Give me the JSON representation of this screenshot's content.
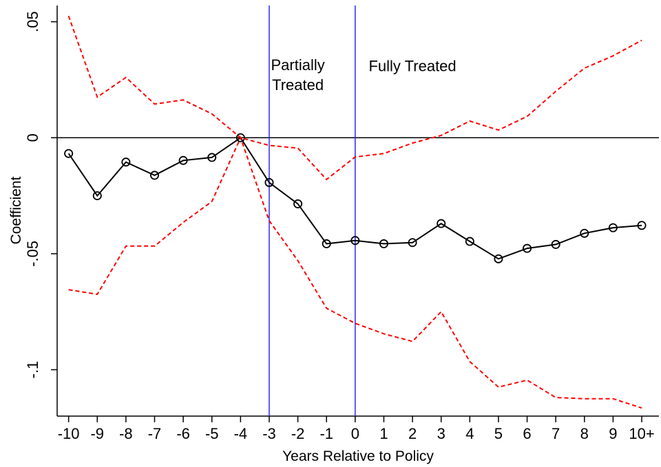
{
  "chart_data": {
    "type": "line",
    "xlabel": "Years Relative to Policy",
    "ylabel": "Coefficient",
    "x_tick_labels": [
      "-10",
      "-9",
      "-8",
      "-7",
      "-6",
      "-5",
      "-4",
      "-3",
      "-2",
      "-1",
      "0",
      "1",
      "2",
      "3",
      "4",
      "5",
      "6",
      "7",
      "8",
      "9",
      "10+"
    ],
    "x": [
      -10,
      -9,
      -8,
      -7,
      -6,
      -5,
      -4,
      -3,
      -2,
      -1,
      0,
      1,
      2,
      3,
      4,
      5,
      6,
      7,
      8,
      9,
      10
    ],
    "xlim": [
      -10.4,
      10.6
    ],
    "ylim": [
      -0.12,
      0.057
    ],
    "y_ticks": [
      {
        "value": 0.05,
        "label": ".05"
      },
      {
        "value": 0,
        "label": "0"
      },
      {
        "value": -0.05,
        "label": "-.05"
      },
      {
        "value": -0.1,
        "label": "-.1"
      }
    ],
    "grid": false,
    "series": [
      {
        "role": "estimate",
        "style": "solid",
        "marker": "hollow-circle",
        "color": "#000000",
        "values": [
          -0.0068,
          -0.025,
          -0.0105,
          -0.0162,
          -0.0098,
          -0.0085,
          0.0,
          -0.0193,
          -0.0285,
          -0.0457,
          -0.0443,
          -0.0457,
          -0.0452,
          -0.037,
          -0.0447,
          -0.0522,
          -0.0477,
          -0.046,
          -0.0412,
          -0.0388,
          -0.0378
        ]
      },
      {
        "role": "upper-ci",
        "style": "dashed",
        "color": "#ff0000",
        "values": [
          0.0525,
          0.0175,
          0.026,
          0.0145,
          0.0163,
          0.0103,
          0.0,
          -0.0033,
          -0.0045,
          -0.018,
          -0.0083,
          -0.0068,
          -0.0023,
          0.001,
          0.0072,
          0.0033,
          0.0092,
          0.02,
          0.03,
          0.0353,
          0.042
        ]
      },
      {
        "role": "lower-ci",
        "style": "dashed",
        "color": "#ff0000",
        "values": [
          -0.0655,
          -0.0675,
          -0.0467,
          -0.0467,
          -0.0365,
          -0.0275,
          0.0,
          -0.0358,
          -0.053,
          -0.0735,
          -0.08,
          -0.0845,
          -0.0878,
          -0.075,
          -0.0965,
          -0.1075,
          -0.1045,
          -0.112,
          -0.1125,
          -0.1125,
          -0.1165
        ]
      }
    ],
    "reference_lines": [
      {
        "orientation": "horizontal",
        "value": 0,
        "color": "#000000"
      },
      {
        "orientation": "vertical",
        "value": -3,
        "color": "#1a1aff"
      },
      {
        "orientation": "vertical",
        "value": 0,
        "color": "#1a1aff"
      }
    ],
    "annotations": [
      {
        "lines": [
          "Partially",
          "Treated"
        ],
        "x": -2.0,
        "y": 0.0255
      },
      {
        "lines": [
          "Fully Treated"
        ],
        "x": 2.0,
        "y": 0.0252
      }
    ]
  }
}
